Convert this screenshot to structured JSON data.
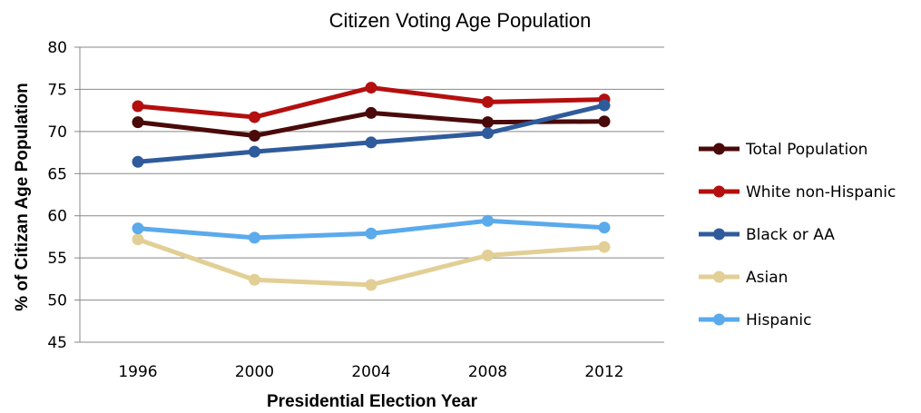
{
  "chart_data": {
    "type": "line",
    "title": "Citizen Voting Age Population",
    "xlabel": "Presidential Election Year",
    "ylabel": "% of Citizan Age Population",
    "categories": [
      "1996",
      "2000",
      "2004",
      "2008",
      "2012"
    ],
    "ylim": [
      45,
      80
    ],
    "yticks": [
      45,
      50,
      55,
      60,
      65,
      70,
      75,
      80
    ],
    "grid": true,
    "legend_position": "right",
    "series": [
      {
        "name": "Total Population",
        "color": "#4a0a0a",
        "values": [
          71.1,
          69.5,
          72.2,
          71.1,
          71.2
        ]
      },
      {
        "name": "White non-Hispanic",
        "color": "#b40f0f",
        "values": [
          73.0,
          71.7,
          75.2,
          73.5,
          73.8
        ]
      },
      {
        "name": "Black or AA",
        "color": "#2f5b9c",
        "values": [
          66.4,
          67.6,
          68.7,
          69.8,
          73.1
        ]
      },
      {
        "name": "Asian",
        "color": "#e2cf96",
        "values": [
          57.2,
          52.4,
          51.8,
          55.3,
          56.3
        ]
      },
      {
        "name": "Hispanic",
        "color": "#5aaaec",
        "values": [
          58.5,
          57.4,
          57.9,
          59.4,
          58.6
        ]
      }
    ]
  }
}
